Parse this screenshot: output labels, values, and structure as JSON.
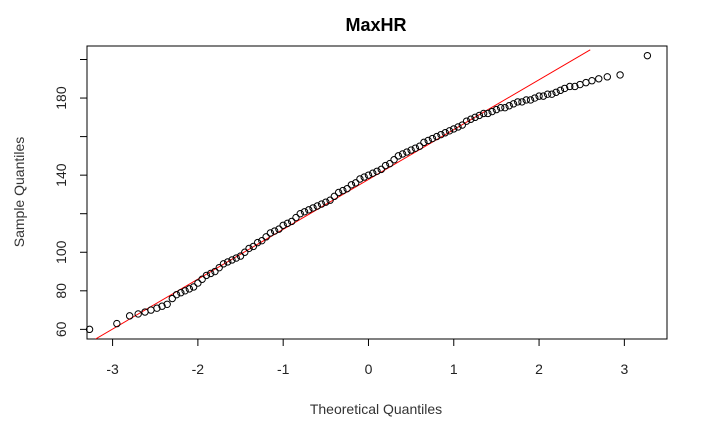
{
  "chart_data": {
    "type": "scatter",
    "title": "MaxHR",
    "xlabel": "Theoretical Quantiles",
    "ylabel": "Sample Quantiles",
    "xlim": [
      -3.3,
      3.5
    ],
    "ylim": [
      55,
      207
    ],
    "x_ticks": [
      -3,
      -2,
      -1,
      0,
      1,
      2,
      3
    ],
    "y_ticks": [
      60,
      80,
      100,
      140,
      180
    ],
    "y_minor_ticks": [
      60,
      80,
      100,
      120,
      140,
      160,
      180,
      200
    ],
    "grid": false,
    "point_color": "#000000",
    "reference_line": {
      "color": "#ff0000",
      "x": [
        -3.2,
        2.6
      ],
      "y": [
        55,
        205
      ]
    },
    "points": {
      "x": [
        -3.27,
        -2.95,
        -2.8,
        -2.7,
        -2.62,
        -2.55,
        -2.48,
        -2.42,
        -2.36,
        -2.3,
        -2.25,
        -2.2,
        -2.15,
        -2.1,
        -2.05,
        -2.0,
        -1.95,
        -1.9,
        -1.85,
        -1.8,
        -1.75,
        -1.7,
        -1.65,
        -1.6,
        -1.55,
        -1.5,
        -1.45,
        -1.4,
        -1.35,
        -1.3,
        -1.25,
        -1.2,
        -1.15,
        -1.1,
        -1.05,
        -1.0,
        -0.95,
        -0.9,
        -0.85,
        -0.8,
        -0.75,
        -0.7,
        -0.65,
        -0.6,
        -0.55,
        -0.5,
        -0.45,
        -0.4,
        -0.35,
        -0.3,
        -0.25,
        -0.2,
        -0.15,
        -0.1,
        -0.05,
        0.0,
        0.05,
        0.1,
        0.15,
        0.2,
        0.25,
        0.3,
        0.35,
        0.4,
        0.45,
        0.5,
        0.55,
        0.6,
        0.65,
        0.7,
        0.75,
        0.8,
        0.85,
        0.9,
        0.95,
        1.0,
        1.05,
        1.1,
        1.15,
        1.2,
        1.25,
        1.3,
        1.35,
        1.4,
        1.45,
        1.5,
        1.55,
        1.6,
        1.65,
        1.7,
        1.75,
        1.8,
        1.85,
        1.9,
        1.95,
        2.0,
        2.05,
        2.1,
        2.15,
        2.2,
        2.25,
        2.3,
        2.36,
        2.42,
        2.48,
        2.55,
        2.62,
        2.7,
        2.8,
        2.95,
        3.27
      ],
      "y": [
        60,
        63,
        67,
        68,
        69,
        70,
        71,
        72,
        73,
        76,
        78,
        79,
        80,
        81,
        82,
        84,
        86,
        88,
        89,
        90,
        92,
        94,
        95,
        96,
        97,
        98,
        100,
        102,
        103,
        105,
        106,
        108,
        110,
        111,
        112,
        114,
        115,
        116,
        118,
        120,
        121,
        122,
        123,
        124,
        125,
        126,
        127,
        129,
        131,
        132,
        133,
        135,
        136,
        138,
        139,
        140,
        141,
        142,
        143,
        145,
        146,
        148,
        150,
        151,
        152,
        153,
        154,
        155,
        157,
        158,
        159,
        160,
        161,
        162,
        163,
        164,
        165,
        166,
        168,
        169,
        170,
        171,
        172,
        172,
        173,
        174,
        175,
        175,
        176,
        177,
        178,
        178,
        179,
        179,
        180,
        181,
        181,
        182,
        182,
        183,
        184,
        185,
        186,
        186,
        187,
        188,
        189,
        190,
        191,
        192,
        202
      ]
    }
  }
}
